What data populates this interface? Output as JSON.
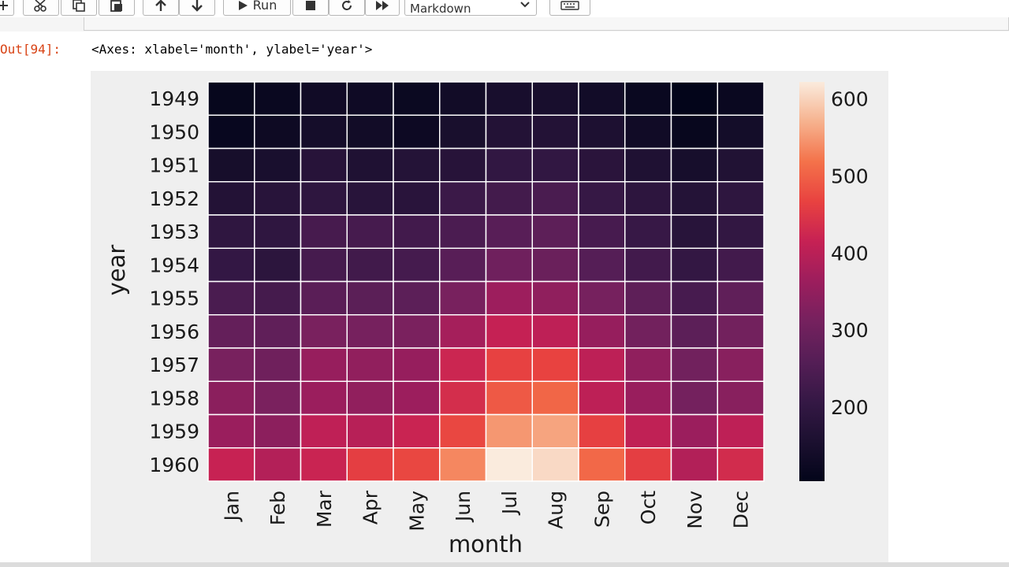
{
  "toolbar": {
    "run_label": "Run",
    "cell_type": "Markdown",
    "buttons": [
      "plus-icon",
      "cut-icon",
      "copy-icon",
      "paste-icon",
      "move-up-icon",
      "move-down-icon",
      "run-icon",
      "stop-icon",
      "restart-icon",
      "fast-forward-icon",
      "keyboard-icon"
    ]
  },
  "output": {
    "prompt": "Out[94]:",
    "text": "<Axes: xlabel='month', ylabel='year'>"
  },
  "chart_data": {
    "type": "heatmap",
    "title": "",
    "xlabel": "month",
    "ylabel": "year",
    "x_categories": [
      "Jan",
      "Feb",
      "Mar",
      "Apr",
      "May",
      "Jun",
      "Jul",
      "Aug",
      "Sep",
      "Oct",
      "Nov",
      "Dec"
    ],
    "y_categories": [
      "1949",
      "1950",
      "1951",
      "1952",
      "1953",
      "1954",
      "1955",
      "1956",
      "1957",
      "1958",
      "1959",
      "1960"
    ],
    "values": [
      [
        112,
        118,
        132,
        129,
        121,
        135,
        148,
        148,
        136,
        119,
        104,
        118
      ],
      [
        115,
        126,
        141,
        135,
        125,
        149,
        170,
        170,
        158,
        133,
        114,
        140
      ],
      [
        145,
        150,
        178,
        163,
        172,
        178,
        199,
        199,
        184,
        162,
        146,
        166
      ],
      [
        171,
        180,
        193,
        181,
        183,
        218,
        230,
        242,
        209,
        191,
        172,
        194
      ],
      [
        196,
        196,
        236,
        235,
        229,
        243,
        264,
        272,
        237,
        211,
        180,
        201
      ],
      [
        204,
        188,
        235,
        227,
        234,
        264,
        302,
        293,
        259,
        229,
        203,
        229
      ],
      [
        242,
        233,
        267,
        269,
        270,
        315,
        364,
        347,
        312,
        274,
        237,
        278
      ],
      [
        284,
        277,
        317,
        313,
        318,
        374,
        413,
        405,
        355,
        306,
        271,
        306
      ],
      [
        315,
        301,
        356,
        348,
        355,
        422,
        465,
        467,
        404,
        347,
        305,
        336
      ],
      [
        340,
        318,
        362,
        348,
        363,
        435,
        491,
        505,
        404,
        359,
        310,
        337
      ],
      [
        360,
        342,
        406,
        396,
        420,
        472,
        548,
        559,
        463,
        407,
        362,
        405
      ],
      [
        417,
        391,
        419,
        461,
        472,
        535,
        622,
        606,
        508,
        461,
        390,
        432
      ]
    ],
    "colormap": "rocket",
    "colorbar": {
      "min": 104,
      "max": 622,
      "ticks": [
        200,
        300,
        400,
        500,
        600
      ]
    },
    "cell_gridlines": "white"
  }
}
